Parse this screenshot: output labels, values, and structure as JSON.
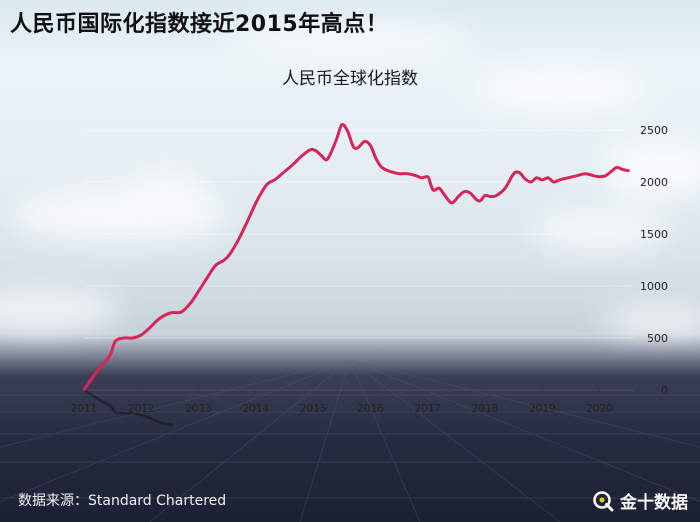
{
  "headline": "人民币国际化指数接近2015年高点！",
  "source": "数据来源：Standard Chartered",
  "brand": {
    "name": "金十数据",
    "icon": "jin10-logo-icon"
  },
  "colors": {
    "line": "#d9245a",
    "headline": "#111111"
  },
  "chart_data": {
    "type": "line",
    "title": "人民币全球化指数",
    "xlabel": "",
    "ylabel": "",
    "x_ticks": [
      "2011",
      "2012",
      "2013",
      "2014",
      "2015",
      "2016",
      "2017",
      "2018",
      "2019",
      "2020"
    ],
    "y_ticks": [
      "0",
      "500",
      "1000",
      "1500",
      "2000",
      "2500"
    ],
    "ylim": [
      0,
      2500
    ],
    "xlim": [
      2011.0,
      2020.6
    ],
    "y_axis_side": "right",
    "grid": "horizontal",
    "series": [
      {
        "name": "",
        "x": [
          2011.0,
          2011.15,
          2011.3,
          2011.45,
          2011.55,
          2011.7,
          2011.85,
          2012.0,
          2012.15,
          2012.3,
          2012.45,
          2012.55,
          2012.7,
          2012.85,
          2013.0,
          2013.15,
          2013.3,
          2013.45,
          2013.55,
          2013.7,
          2013.85,
          2014.0,
          2014.1,
          2014.2,
          2014.35,
          2014.5,
          2014.65,
          2014.8,
          2014.95,
          2015.05,
          2015.15,
          2015.25,
          2015.4,
          2015.5,
          2015.6,
          2015.7,
          2015.78,
          2015.9,
          2016.0,
          2016.1,
          2016.2,
          2016.35,
          2016.5,
          2016.65,
          2016.8,
          2016.9,
          2017.0,
          2017.05,
          2017.1,
          2017.2,
          2017.3,
          2017.42,
          2017.55,
          2017.65,
          2017.75,
          2017.85,
          2017.92,
          2018.0,
          2018.1,
          2018.2,
          2018.35,
          2018.5,
          2018.6,
          2018.7,
          2018.8,
          2018.9,
          2019.0,
          2019.1,
          2019.2,
          2019.3,
          2019.45,
          2019.6,
          2019.75,
          2019.9,
          2020.0,
          2020.1,
          2020.2,
          2020.3,
          2020.4,
          2020.5
        ],
        "y": [
          0,
          120,
          230,
          330,
          470,
          500,
          500,
          530,
          600,
          680,
          730,
          745,
          750,
          830,
          950,
          1080,
          1200,
          1250,
          1310,
          1450,
          1620,
          1800,
          1900,
          1980,
          2030,
          2100,
          2170,
          2250,
          2310,
          2300,
          2250,
          2220,
          2400,
          2550,
          2490,
          2340,
          2330,
          2390,
          2350,
          2220,
          2140,
          2100,
          2080,
          2080,
          2060,
          2040,
          2050,
          1980,
          1920,
          1940,
          1870,
          1800,
          1870,
          1910,
          1890,
          1830,
          1820,
          1870,
          1860,
          1870,
          1940,
          2080,
          2090,
          2030,
          2000,
          2040,
          2020,
          2040,
          2000,
          2020,
          2040,
          2060,
          2080,
          2060,
          2050,
          2060,
          2100,
          2140,
          2120,
          2110
        ]
      }
    ]
  }
}
